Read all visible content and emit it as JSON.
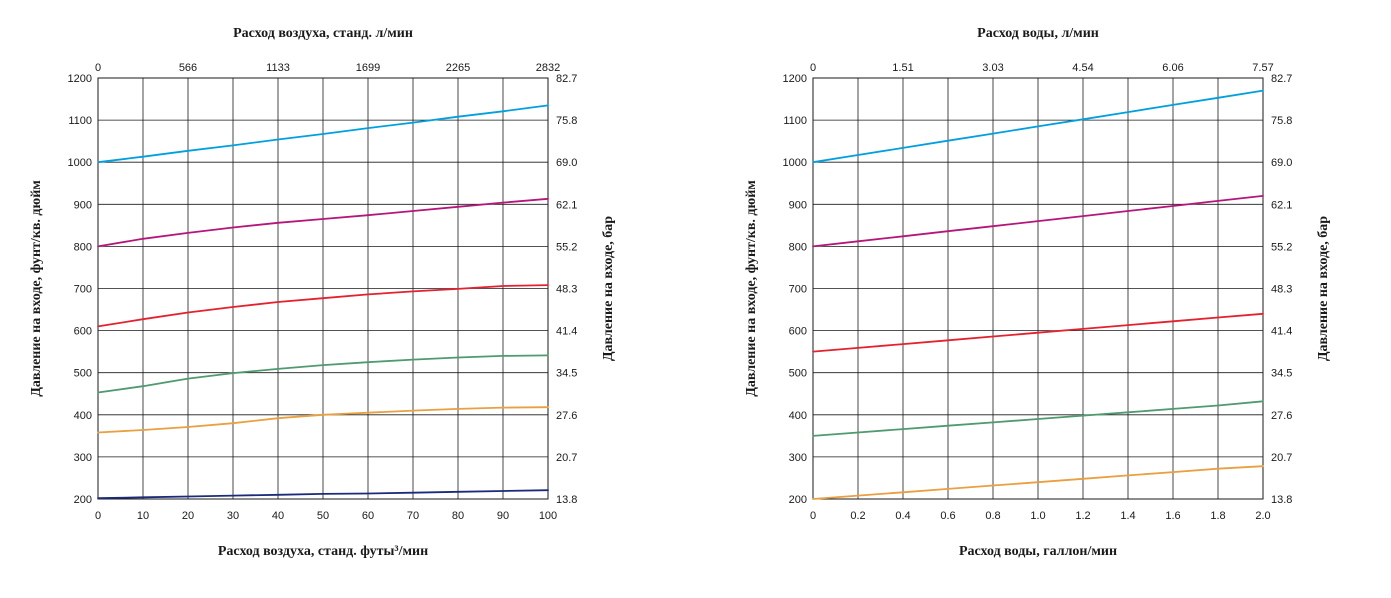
{
  "chart_data": [
    {
      "type": "line",
      "top_axis": {
        "label": "Расход воздуха, станд. л/мин",
        "ticks": [
          "0",
          "566",
          "1133",
          "1699",
          "2265",
          "2832"
        ]
      },
      "bottom_axis": {
        "label": "Расход воздуха, станд. футы³/мин",
        "ticks": [
          "0",
          "10",
          "20",
          "30",
          "40",
          "50",
          "60",
          "70",
          "80",
          "90",
          "100"
        ]
      },
      "left_axis": {
        "label": "Давление на входе, фунт/кв. дюйм",
        "ticks": [
          "200",
          "300",
          "400",
          "500",
          "600",
          "700",
          "800",
          "900",
          "1000",
          "1100",
          "1200"
        ]
      },
      "right_axis": {
        "label": "Давление на входе, бар",
        "ticks": [
          "13.8",
          "20.7",
          "27.6",
          "34.5",
          "41.4",
          "48.3",
          "55.2",
          "62.1",
          "69.0",
          "75.8",
          "82.7"
        ]
      },
      "xlim": [
        0,
        100
      ],
      "ylim": [
        200,
        1200
      ],
      "grid": true,
      "x": [
        0,
        10,
        20,
        30,
        40,
        50,
        60,
        70,
        80,
        90,
        100
      ],
      "series": [
        {
          "color": "#00a0e0",
          "values": [
            1000,
            1013,
            1027,
            1040,
            1054,
            1067,
            1081,
            1094,
            1108,
            1121,
            1135
          ]
        },
        {
          "color": "#b5167a",
          "values": [
            800,
            818,
            832,
            845,
            856,
            865,
            874,
            884,
            894,
            904,
            913
          ]
        },
        {
          "color": "#e4212e",
          "values": [
            610,
            627,
            643,
            656,
            668,
            677,
            686,
            693,
            699,
            706,
            708
          ]
        },
        {
          "color": "#4f9a6e",
          "values": [
            453,
            468,
            486,
            499,
            509,
            518,
            525,
            531,
            536,
            540,
            541
          ]
        },
        {
          "color": "#e8a040",
          "values": [
            358,
            364,
            371,
            380,
            392,
            400,
            405,
            410,
            414,
            417,
            418
          ]
        },
        {
          "color": "#1b2b7a",
          "values": [
            202,
            204,
            206,
            208,
            210,
            212,
            213,
            215,
            217,
            219,
            221
          ]
        }
      ]
    },
    {
      "type": "line",
      "top_axis": {
        "label": "Расход воды, л/мин",
        "ticks": [
          "0",
          "1.51",
          "3.03",
          "4.54",
          "6.06",
          "7.57"
        ]
      },
      "bottom_axis": {
        "label": "Расход воды, галлон/мин",
        "ticks": [
          "0",
          "0.2",
          "0.4",
          "0.6",
          "0.8",
          "1.0",
          "1.2",
          "1.4",
          "1.6",
          "1.8",
          "2.0"
        ]
      },
      "left_axis": {
        "label": "Давление на входе, фунт/кв. дюйм",
        "ticks": [
          "200",
          "300",
          "400",
          "500",
          "600",
          "700",
          "800",
          "900",
          "1000",
          "1100",
          "1200"
        ]
      },
      "right_axis": {
        "label": "Давление на входе, бар",
        "ticks": [
          "13.8",
          "20.7",
          "27.6",
          "34.5",
          "41.4",
          "48.3",
          "55.2",
          "62.1",
          "69.0",
          "75.8",
          "82.7"
        ]
      },
      "xlim": [
        0,
        2.0
      ],
      "ylim": [
        200,
        1200
      ],
      "grid": true,
      "x": [
        0,
        0.2,
        0.4,
        0.6,
        0.8,
        1.0,
        1.2,
        1.4,
        1.6,
        1.8,
        2.0
      ],
      "series": [
        {
          "color": "#00a0e0",
          "values": [
            1000,
            1017,
            1034,
            1051,
            1068,
            1085,
            1102,
            1119,
            1136,
            1153,
            1170
          ]
        },
        {
          "color": "#b5167a",
          "values": [
            800,
            812,
            824,
            836,
            848,
            860,
            872,
            884,
            896,
            908,
            920
          ]
        },
        {
          "color": "#e4212e",
          "values": [
            550,
            559,
            568,
            577,
            586,
            595,
            604,
            613,
            622,
            631,
            640
          ]
        },
        {
          "color": "#4f9a6e",
          "values": [
            350,
            358,
            366,
            374,
            382,
            390,
            398,
            406,
            414,
            422,
            432
          ]
        },
        {
          "color": "#e8a040",
          "values": [
            200,
            208,
            216,
            224,
            232,
            240,
            248,
            256,
            264,
            272,
            278
          ]
        }
      ]
    }
  ]
}
